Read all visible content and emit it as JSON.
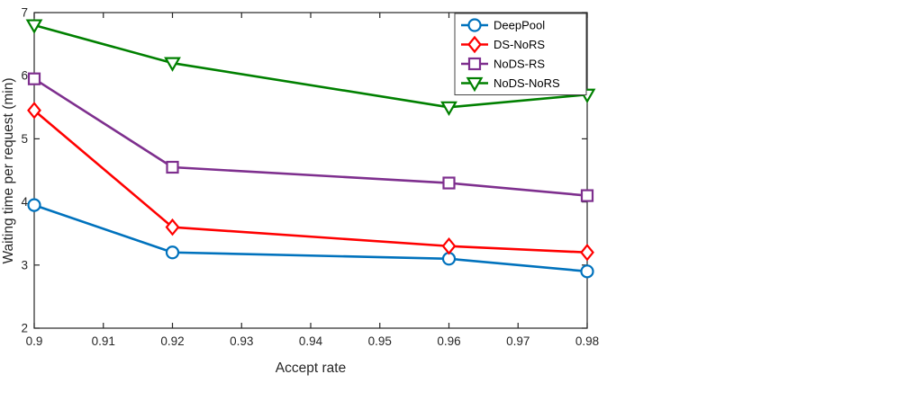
{
  "chart_data": {
    "type": "line",
    "title": "",
    "xlabel": "Accept rate",
    "ylabel": "Waiting time per request (min)",
    "xlim": [
      0.9,
      0.98
    ],
    "ylim": [
      2,
      7
    ],
    "xticks": [
      0.9,
      0.91,
      0.92,
      0.93,
      0.94,
      0.95,
      0.96,
      0.97,
      0.98
    ],
    "yticks": [
      2,
      3,
      4,
      5,
      6,
      7
    ],
    "grid": false,
    "legend_position": "top-right",
    "x": [
      0.9,
      0.92,
      0.96,
      0.98
    ],
    "series": [
      {
        "name": "DeepPool",
        "color": "#0072BD",
        "marker": "circle",
        "values": [
          3.95,
          3.2,
          3.1,
          2.9
        ]
      },
      {
        "name": "DS-NoRS",
        "color": "#FF0000",
        "marker": "diamond",
        "values": [
          5.45,
          3.6,
          3.3,
          3.2
        ]
      },
      {
        "name": "NoDS-RS",
        "color": "#7E2F8E",
        "marker": "square",
        "values": [
          5.95,
          4.55,
          4.3,
          4.1
        ]
      },
      {
        "name": "NoDS-NoRS",
        "color": "#008000",
        "marker": "triangle-down",
        "values": [
          6.8,
          6.2,
          5.5,
          5.7
        ]
      }
    ]
  }
}
